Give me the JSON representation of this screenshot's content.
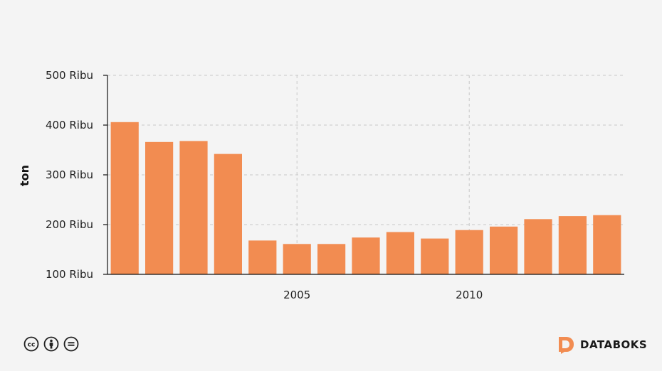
{
  "chart_data": {
    "type": "bar",
    "x": [
      2000,
      2001,
      2002,
      2003,
      2004,
      2005,
      2006,
      2007,
      2008,
      2009,
      2010,
      2011,
      2012,
      2013,
      2014
    ],
    "values": [
      406000,
      366000,
      368000,
      342000,
      168000,
      161000,
      161000,
      174000,
      185000,
      172000,
      189000,
      196000,
      211000,
      217000,
      219000
    ],
    "ylabel": "ton",
    "ylim": [
      100000,
      500000
    ],
    "yticks": [
      {
        "value": 100000,
        "label": "100 Ribu"
      },
      {
        "value": 200000,
        "label": "200 Ribu"
      },
      {
        "value": 300000,
        "label": "300 Ribu"
      },
      {
        "value": 400000,
        "label": "400 Ribu"
      },
      {
        "value": 500000,
        "label": "500 Ribu"
      }
    ],
    "xticks": [
      {
        "value": 2005,
        "label": "2005"
      },
      {
        "value": 2010,
        "label": "2010"
      }
    ],
    "grid": true,
    "bar_color": "#f28c51"
  },
  "footer": {
    "license_icons": [
      "cc-icon",
      "by-icon",
      "nd-icon"
    ],
    "brand_name": "DATABOKS",
    "brand_color": "#f28c51"
  }
}
